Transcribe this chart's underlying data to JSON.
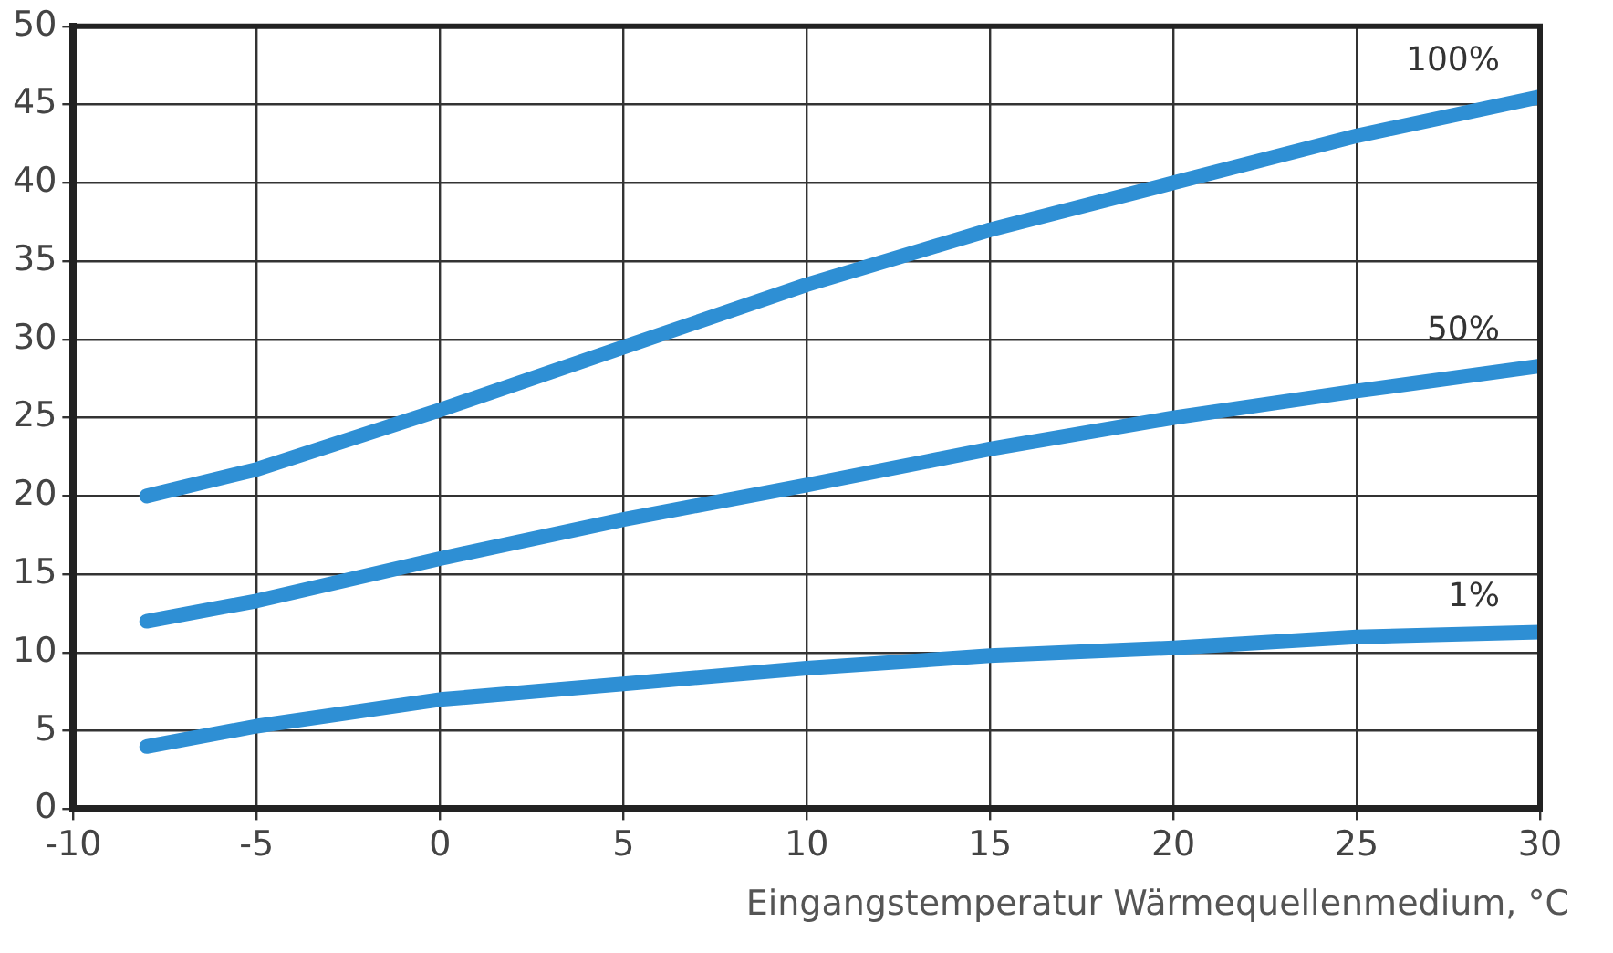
{
  "chart_data": {
    "type": "line",
    "xlabel": "Eingangstemperatur Wärmequellenmedium, °C",
    "xlim": [
      -10,
      30
    ],
    "xticks": [
      -10,
      -5,
      0,
      5,
      10,
      15,
      20,
      25,
      30
    ],
    "ylim": [
      0,
      50
    ],
    "yticks": [
      0,
      5,
      10,
      15,
      20,
      25,
      30,
      35,
      40,
      45,
      50
    ],
    "grid": true,
    "legend": false,
    "marker": "none",
    "line_style": "solid",
    "x": [
      -8,
      -5,
      0,
      5,
      10,
      15,
      20,
      25,
      30
    ],
    "series": [
      {
        "name": "100%",
        "color": "#2e8fd4",
        "values": [
          20,
          21.7,
          25.5,
          29.5,
          33.5,
          37,
          40,
          43,
          45.5
        ]
      },
      {
        "name": "50%",
        "color": "#2e8fd4",
        "values": [
          12,
          13.3,
          16,
          18.5,
          20.7,
          23,
          25,
          26.7,
          28.3
        ]
      },
      {
        "name": "1%",
        "color": "#2e8fd4",
        "values": [
          4,
          5.3,
          7,
          8,
          9,
          9.8,
          10.3,
          11,
          11.3
        ]
      }
    ]
  }
}
